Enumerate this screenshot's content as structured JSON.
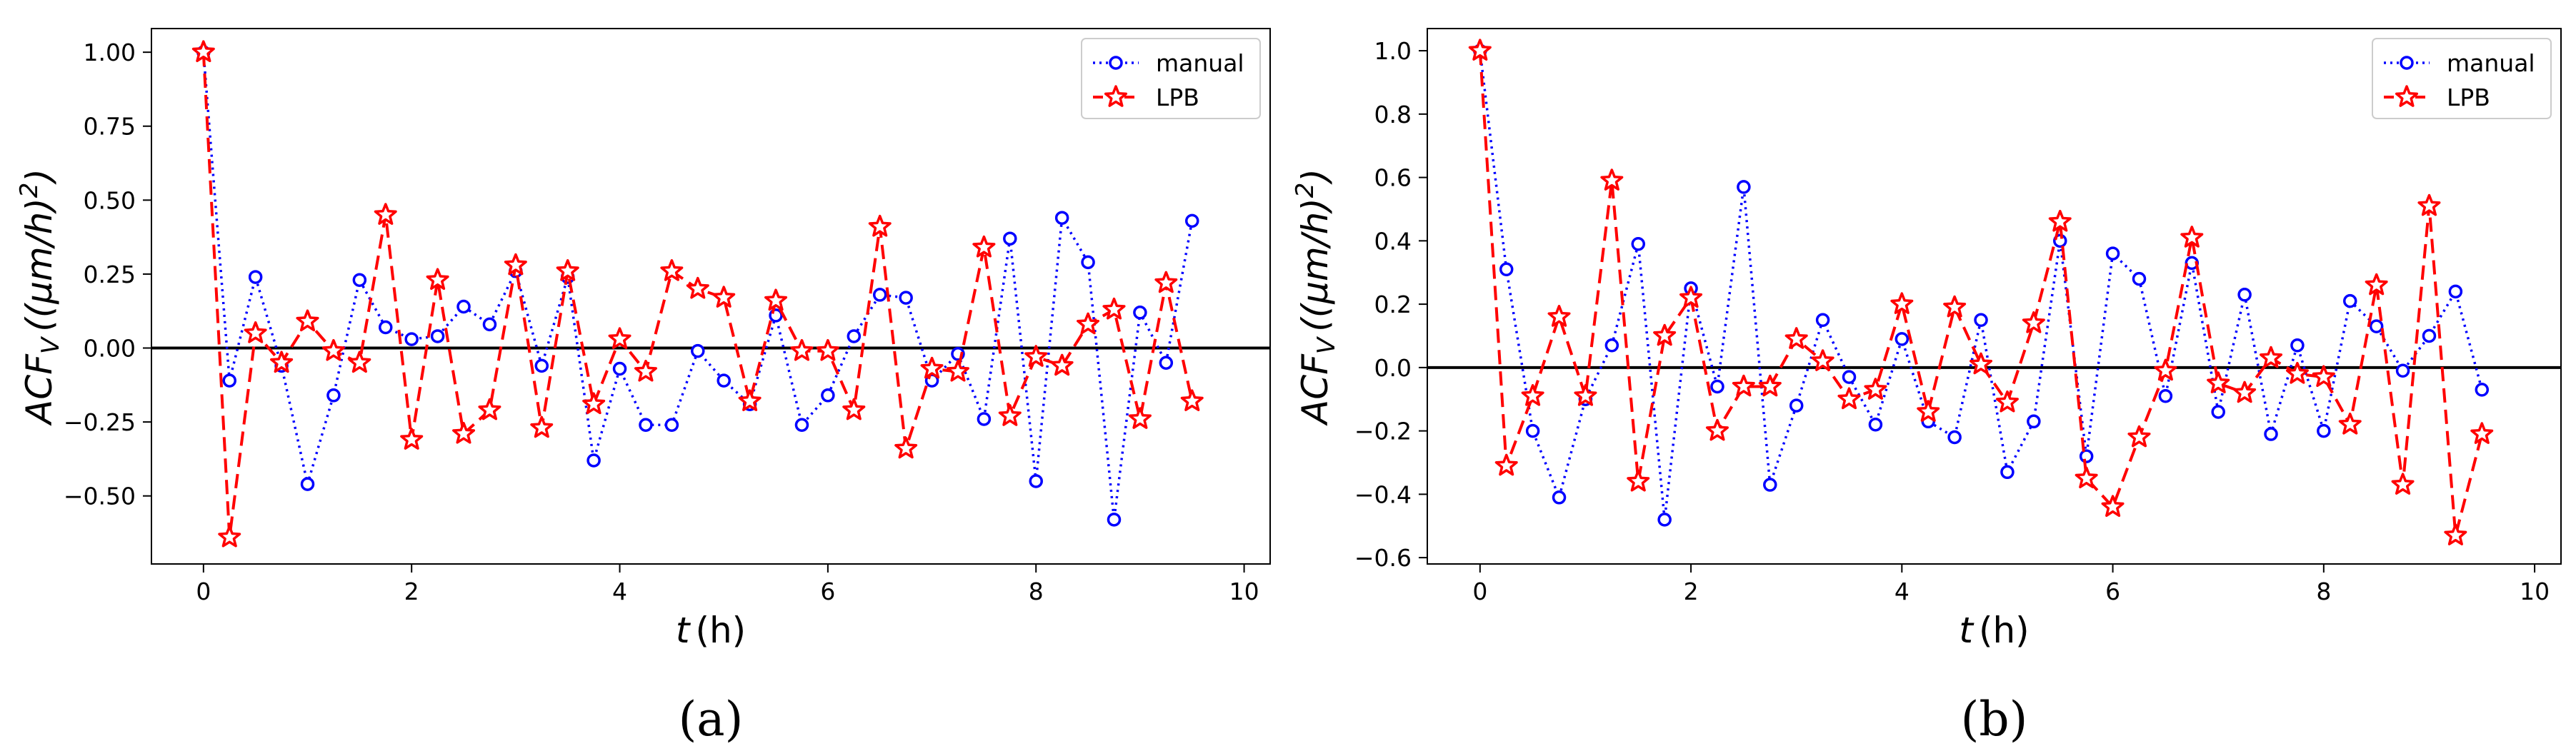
{
  "chart_data": [
    {
      "type": "line",
      "panel_label": "(a)",
      "xlabel": "t (h)",
      "xlabel_var": "t",
      "xlabel_unit": "(h)",
      "ylabel": "ACF_V ((μm/h)^2)",
      "ylabel_base": "ACF",
      "ylabel_sub": "V",
      "ylabel_unit": "((μm/h)",
      "ylabel_exp": "2",
      "ylabel_close": ")",
      "xlim": [
        -0.5,
        10.25
      ],
      "ylim": [
        -0.73,
        1.08
      ],
      "xticks": [
        0,
        2,
        4,
        6,
        8,
        10
      ],
      "yticks": [
        -0.5,
        -0.25,
        0.0,
        0.25,
        0.5,
        0.75,
        1.0
      ],
      "ytick_labels": [
        "−0.50",
        "−0.25",
        "0.00",
        "0.25",
        "0.50",
        "0.75",
        "1.00"
      ],
      "zero_line": true,
      "legend": [
        "manual",
        "LPB"
      ],
      "legend_position": "top-right",
      "x": [
        0,
        0.25,
        0.5,
        0.75,
        1.0,
        1.25,
        1.5,
        1.75,
        2.0,
        2.25,
        2.5,
        2.75,
        3.0,
        3.25,
        3.5,
        3.75,
        4.0,
        4.25,
        4.5,
        4.75,
        5.0,
        5.25,
        5.5,
        5.75,
        6.0,
        6.25,
        6.5,
        6.75,
        7.0,
        7.25,
        7.5,
        7.75,
        8.0,
        8.25,
        8.5,
        8.75,
        9.0,
        9.25,
        9.5
      ],
      "series": [
        {
          "name": "manual",
          "color": "#0000ff",
          "style": "dotted",
          "marker": "circle",
          "values": [
            1.0,
            -0.11,
            0.24,
            -0.06,
            -0.46,
            -0.16,
            0.23,
            0.07,
            0.03,
            0.04,
            0.14,
            0.08,
            0.26,
            -0.06,
            0.24,
            -0.38,
            -0.07,
            -0.26,
            -0.26,
            -0.01,
            -0.11,
            -0.19,
            0.11,
            -0.26,
            -0.16,
            0.04,
            0.18,
            0.17,
            -0.11,
            -0.02,
            -0.24,
            0.37,
            -0.45,
            0.44,
            0.29,
            -0.58,
            0.12,
            -0.05,
            0.43
          ]
        },
        {
          "name": "LPB",
          "color": "#ff0000",
          "style": "dashed",
          "marker": "star",
          "values": [
            1.0,
            -0.64,
            0.05,
            -0.05,
            0.09,
            -0.01,
            -0.05,
            0.45,
            -0.31,
            0.23,
            -0.29,
            -0.21,
            0.28,
            -0.27,
            0.26,
            -0.19,
            0.03,
            -0.08,
            0.26,
            0.2,
            0.17,
            -0.18,
            0.16,
            -0.01,
            -0.01,
            -0.21,
            0.41,
            -0.34,
            -0.07,
            -0.08,
            0.34,
            -0.23,
            -0.03,
            -0.06,
            0.08,
            0.13,
            -0.24,
            0.22,
            -0.18
          ]
        }
      ]
    },
    {
      "type": "line",
      "panel_label": "(b)",
      "xlabel": "t (h)",
      "xlabel_var": "t",
      "xlabel_unit": "(h)",
      "ylabel": "ACF_V ((μm/h)^2)",
      "ylabel_base": "ACF",
      "ylabel_sub": "V",
      "ylabel_unit": "((μm/h)",
      "ylabel_exp": "2",
      "ylabel_close": ")",
      "xlim": [
        -0.5,
        10.25
      ],
      "ylim": [
        -0.62,
        1.07
      ],
      "xticks": [
        0,
        2,
        4,
        6,
        8,
        10
      ],
      "yticks": [
        -0.6,
        -0.4,
        -0.2,
        0.0,
        0.2,
        0.4,
        0.6,
        0.8,
        1.0
      ],
      "ytick_labels": [
        "−0.6",
        "−0.4",
        "−0.2",
        "0.0",
        "0.2",
        "0.4",
        "0.6",
        "0.8",
        "1.0"
      ],
      "zero_line": true,
      "legend": [
        "manual",
        "LPB"
      ],
      "legend_position": "top-right",
      "x": [
        0,
        0.25,
        0.5,
        0.75,
        1.0,
        1.25,
        1.5,
        1.75,
        2.0,
        2.25,
        2.5,
        2.75,
        3.0,
        3.25,
        3.5,
        3.75,
        4.0,
        4.25,
        4.5,
        4.75,
        5.0,
        5.25,
        5.5,
        5.75,
        6.0,
        6.25,
        6.5,
        6.75,
        7.0,
        7.25,
        7.5,
        7.75,
        8.0,
        8.25,
        8.5,
        8.75,
        9.0,
        9.25,
        9.5
      ],
      "series": [
        {
          "name": "manual",
          "color": "#0000ff",
          "style": "dotted",
          "marker": "circle",
          "values": [
            1.0,
            0.31,
            -0.2,
            -0.41,
            -0.1,
            0.07,
            0.39,
            -0.48,
            0.25,
            -0.06,
            0.57,
            -0.37,
            -0.12,
            0.15,
            -0.03,
            -0.18,
            0.09,
            -0.17,
            -0.22,
            0.15,
            -0.33,
            -0.17,
            0.4,
            -0.28,
            0.36,
            0.28,
            -0.09,
            0.33,
            -0.14,
            0.23,
            -0.21,
            0.07,
            -0.2,
            0.21,
            0.13,
            -0.01,
            0.1,
            0.24,
            -0.07
          ]
        },
        {
          "name": "LPB",
          "color": "#ff0000",
          "style": "dashed",
          "marker": "star",
          "values": [
            1.0,
            -0.31,
            -0.09,
            0.16,
            -0.09,
            0.59,
            -0.36,
            0.1,
            0.22,
            -0.2,
            -0.06,
            -0.06,
            0.09,
            0.02,
            -0.1,
            -0.07,
            0.2,
            -0.14,
            0.19,
            0.01,
            -0.11,
            0.14,
            0.46,
            -0.35,
            -0.44,
            -0.22,
            -0.01,
            0.41,
            -0.05,
            -0.08,
            0.03,
            -0.02,
            -0.03,
            -0.18,
            0.26,
            -0.37,
            0.51,
            -0.53,
            -0.21
          ]
        }
      ]
    }
  ]
}
